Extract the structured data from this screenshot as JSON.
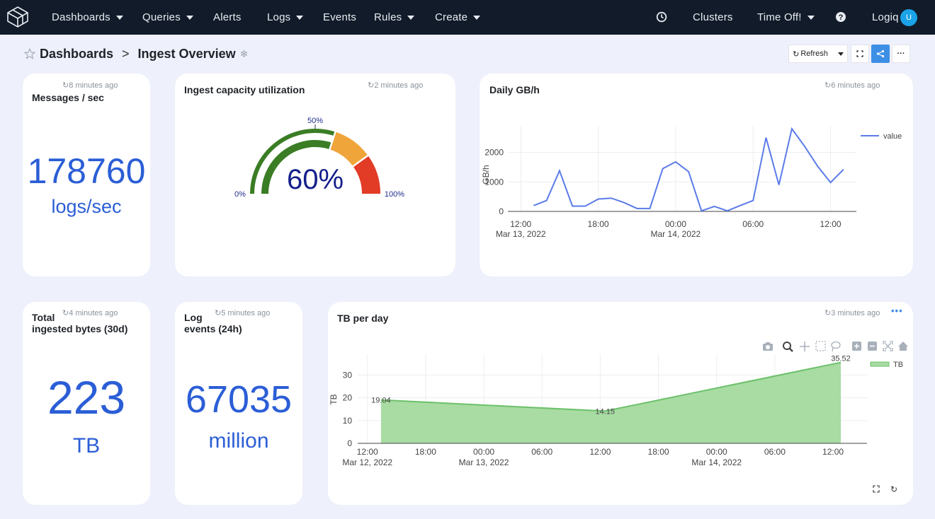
{
  "nav": {
    "items": [
      {
        "label": "Dashboards",
        "caret": true
      },
      {
        "label": "Queries",
        "caret": true
      },
      {
        "label": "Alerts",
        "caret": false
      },
      {
        "label": "Logs",
        "caret": true
      },
      {
        "label": "Events",
        "caret": false
      },
      {
        "label": "Rules",
        "caret": true
      },
      {
        "label": "Create",
        "caret": true
      }
    ],
    "clusters_label": "Clusters",
    "timeoff_label": "Time Off!",
    "user_label": "Logiq",
    "avatar_initial": "U"
  },
  "breadcrumb": {
    "root": "Dashboards",
    "current": "Ingest Overview"
  },
  "toolbar": {
    "refresh_label": "Refresh",
    "more_label": "···"
  },
  "widgets": {
    "messages": {
      "title": "Messages / sec",
      "updated": "8 minutes ago",
      "value": "178760",
      "unit": "logs/sec"
    },
    "ingest": {
      "title": "Ingest capacity utilization",
      "updated": "2 minutes ago",
      "value_label": "60%",
      "value": 60,
      "label_min": "0%",
      "label_mid": "50%",
      "label_max": "100%"
    },
    "daily": {
      "title": "Daily GB/h",
      "updated": "6 minutes ago"
    },
    "total": {
      "title_line1": "Total",
      "title_line2": "ingested bytes (30d)",
      "updated": "4 minutes ago",
      "value": "223",
      "unit": "TB"
    },
    "logevents": {
      "title_line1": "Log",
      "title_line2": "events (24h)",
      "updated": "5 minutes ago",
      "value": "67035",
      "unit": "million"
    },
    "tbday": {
      "title": "TB per day",
      "updated": "3 minutes ago",
      "menu_label": "•••"
    }
  },
  "colors": {
    "accent": "#2b5ed6",
    "line": "#5b7be8",
    "area_fill": "#a8dca3",
    "area_line": "#6cc06a",
    "gauge_green": "#3a7d24",
    "gauge_orange": "#f0a53a",
    "gauge_red": "#e23b26",
    "nav_bg": "#111b29"
  },
  "chart_data": [
    {
      "type": "line",
      "ylabel": "GB/h",
      "ylim": [
        0,
        2900
      ],
      "yticks": [
        0,
        1000,
        2000
      ],
      "xticks": [
        {
          "t": 12,
          "label": "12:00",
          "sub": "Mar 13, 2022"
        },
        {
          "t": 18,
          "label": "18:00",
          "sub": ""
        },
        {
          "t": 24,
          "label": "00:00",
          "sub": "Mar 14, 2022"
        },
        {
          "t": 30,
          "label": "06:00",
          "sub": ""
        },
        {
          "t": 36,
          "label": "12:00",
          "sub": ""
        }
      ],
      "xlim": [
        11,
        38
      ],
      "series": [
        {
          "name": "value",
          "x": [
            13,
            14,
            15,
            16,
            17,
            18,
            19,
            20,
            21,
            22,
            23,
            24,
            25,
            26,
            27,
            28,
            29,
            30,
            31,
            32,
            33,
            34,
            35,
            36,
            37
          ],
          "y": [
            200,
            370,
            1380,
            180,
            180,
            420,
            450,
            300,
            100,
            100,
            1450,
            1680,
            1350,
            20,
            170,
            20,
            200,
            370,
            2500,
            900,
            2800,
            2200,
            1530,
            980,
            1420
          ]
        }
      ],
      "legend_position": "top-right"
    },
    {
      "type": "area",
      "ylabel": "TB",
      "ylim": [
        0,
        36
      ],
      "yticks": [
        0,
        10,
        20,
        30
      ],
      "xticks": [
        {
          "t": 12,
          "label": "12:00",
          "sub": "Mar 12, 2022"
        },
        {
          "t": 18,
          "label": "18:00",
          "sub": ""
        },
        {
          "t": 24,
          "label": "00:00",
          "sub": "Mar 13, 2022"
        },
        {
          "t": 30,
          "label": "06:00",
          "sub": ""
        },
        {
          "t": 36,
          "label": "12:00",
          "sub": ""
        },
        {
          "t": 42,
          "label": "18:00",
          "sub": ""
        },
        {
          "t": 48,
          "label": "00:00",
          "sub": "Mar 14, 2022"
        },
        {
          "t": 54,
          "label": "06:00",
          "sub": ""
        },
        {
          "t": 60,
          "label": "12:00",
          "sub": ""
        }
      ],
      "xlim": [
        11,
        63.5
      ],
      "series": [
        {
          "name": "TB",
          "x": [
            13.4,
            36.5,
            60.8
          ],
          "y": [
            19.04,
            14.15,
            35.52
          ],
          "labels": [
            "19.04",
            "14.15",
            "35.52"
          ]
        }
      ],
      "legend_position": "top-right"
    }
  ]
}
